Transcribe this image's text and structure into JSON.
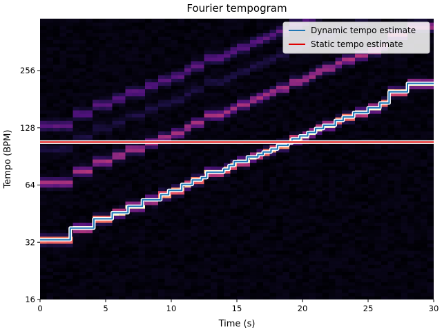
{
  "chart_data": {
    "type": "heatmap",
    "title": "Fourier tempogram",
    "xlabel": "Time (s)",
    "ylabel": "Tempo (BPM)",
    "xlim": [
      0,
      30
    ],
    "ylim": [
      16,
      480
    ],
    "y_scale": "log2",
    "x_ticks": [
      0,
      5,
      10,
      15,
      20,
      25,
      30
    ],
    "x_tick_labels": [
      "0",
      "5",
      "10",
      "15",
      "20",
      "25",
      "30"
    ],
    "y_ticks": [
      16,
      32,
      64,
      128,
      256
    ],
    "y_tick_labels": [
      "16",
      "32",
      "64",
      "128",
      "256"
    ],
    "colormap": "magma",
    "legend_position": "top-right",
    "series": [
      {
        "name": "Dynamic tempo estimate",
        "color": "#1f77b4",
        "type": "step",
        "points": [
          [
            0.0,
            33.0
          ],
          [
            2.3,
            33.0
          ],
          [
            2.3,
            38.0
          ],
          [
            4.1,
            38.0
          ],
          [
            4.1,
            42.5
          ],
          [
            5.5,
            42.5
          ],
          [
            5.5,
            45.8
          ],
          [
            6.7,
            45.8
          ],
          [
            6.7,
            49.5
          ],
          [
            7.8,
            49.5
          ],
          [
            7.8,
            53.5
          ],
          [
            9.2,
            53.5
          ],
          [
            9.2,
            57.0
          ],
          [
            9.8,
            57.0
          ],
          [
            9.8,
            60.0
          ],
          [
            10.8,
            60.0
          ],
          [
            10.8,
            64.5
          ],
          [
            11.6,
            64.5
          ],
          [
            11.6,
            68.0
          ],
          [
            12.3,
            68.0
          ],
          [
            12.3,
            70.0
          ],
          [
            12.7,
            70.0
          ],
          [
            12.7,
            74.8
          ],
          [
            14.0,
            74.8
          ],
          [
            14.0,
            77.5
          ],
          [
            14.4,
            77.5
          ],
          [
            14.4,
            81.0
          ],
          [
            14.8,
            81.0
          ],
          [
            14.8,
            85.0
          ],
          [
            15.8,
            85.0
          ],
          [
            15.8,
            90.0
          ],
          [
            16.6,
            90.0
          ],
          [
            16.6,
            92.5
          ],
          [
            17.0,
            92.5
          ],
          [
            17.0,
            95.5
          ],
          [
            17.6,
            95.5
          ],
          [
            17.6,
            99.0
          ],
          [
            18.1,
            99.0
          ],
          [
            18.1,
            103.5
          ],
          [
            18.9,
            103.5
          ],
          [
            18.9,
            106.5
          ],
          [
            19.2,
            106.5
          ],
          [
            19.2,
            112.0
          ],
          [
            19.8,
            112.0
          ],
          [
            19.8,
            116.0
          ],
          [
            20.4,
            116.0
          ],
          [
            20.4,
            121.0
          ],
          [
            21.0,
            121.0
          ],
          [
            21.0,
            127.0
          ],
          [
            21.6,
            127.0
          ],
          [
            21.6,
            132.0
          ],
          [
            22.5,
            132.0
          ],
          [
            22.5,
            140.0
          ],
          [
            23.1,
            140.0
          ],
          [
            23.1,
            146.0
          ],
          [
            23.9,
            146.0
          ],
          [
            23.9,
            154.0
          ],
          [
            25.0,
            154.0
          ],
          [
            25.0,
            163.0
          ],
          [
            25.9,
            163.0
          ],
          [
            25.9,
            173.0
          ],
          [
            26.6,
            173.0
          ],
          [
            26.6,
            198.0
          ],
          [
            28.0,
            198.0
          ],
          [
            28.0,
            219.0
          ],
          [
            30.0,
            219.0
          ]
        ]
      },
      {
        "name": "Static tempo estimate",
        "color": "#e00000",
        "type": "hline",
        "value": 107.7
      }
    ]
  }
}
